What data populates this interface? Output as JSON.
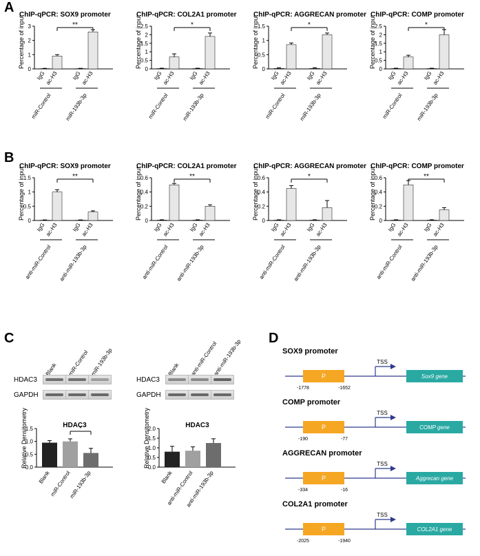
{
  "figure": {
    "panel_labels": {
      "A": "A",
      "B": "B",
      "C": "C",
      "D": "D"
    },
    "title_prefix": "ChIP-qPCR:",
    "y_axis_label": "Percentage of input",
    "y_axis_label_C": "Relative Densitometry",
    "x_ticks": [
      "IgG",
      "ac-H3",
      "IgG",
      "ac-H3"
    ],
    "sig": {
      "star1": "*",
      "star2": "**"
    },
    "colors": {
      "axis": "#000000",
      "bar_dark": "#888888",
      "bar_light": "#e7e7e7",
      "bar_black": "#222222",
      "bar_mid": "#a0a0a0",
      "bar_dark2": "#6d6d6d",
      "sig_line": "#000000",
      "promoter_box": "#f5a623",
      "gene_box": "#2aa9a3",
      "arrow": "#2e3a8c",
      "text": "#000000"
    },
    "panelA": {
      "groups": [
        "miR-Control",
        "miR-193b-3p"
      ],
      "charts": [
        {
          "title": "SOX9 promoter",
          "ymax": 3,
          "yticks": [
            0,
            1,
            2,
            3
          ],
          "values": [
            0.02,
            0.9,
            0.02,
            2.6
          ],
          "err": [
            0.02,
            0.1,
            0.02,
            0.15
          ],
          "sig": "**"
        },
        {
          "title": "COL2A1 promoter",
          "ymax": 2.5,
          "yticks": [
            0,
            0.5,
            1,
            1.5,
            2,
            2.5
          ],
          "values": [
            0.02,
            0.7,
            0.02,
            1.9
          ],
          "err": [
            0.02,
            0.18,
            0.02,
            0.2
          ],
          "sig": "*"
        },
        {
          "title": "AGGRECAN promoter",
          "ymax": 1.5,
          "yticks": [
            0,
            0.5,
            1,
            1.5
          ],
          "values": [
            0.02,
            0.85,
            0.02,
            1.2
          ],
          "err": [
            0.02,
            0.06,
            0.02,
            0.06
          ],
          "sig": "*"
        },
        {
          "title": "COMP promoter",
          "ymax": 2.5,
          "yticks": [
            0,
            0.5,
            1,
            1.5,
            2,
            2.5
          ],
          "values": [
            0.02,
            0.7,
            0.02,
            2.0
          ],
          "err": [
            0.02,
            0.1,
            0.02,
            0.3
          ],
          "sig": "*"
        }
      ]
    },
    "panelB": {
      "groups": [
        "anti-miR-Control",
        "anti-miR-193b-3p"
      ],
      "charts": [
        {
          "title": "SOX9 promoter",
          "ymax": 1.5,
          "yticks": [
            0,
            0.5,
            1,
            1.5
          ],
          "values": [
            0.01,
            1.0,
            0.01,
            0.3
          ],
          "err": [
            0.01,
            0.08,
            0.01,
            0.04
          ],
          "sig": "**"
        },
        {
          "title": "COL2A1 promoter",
          "ymax": 0.6,
          "yticks": [
            0,
            0.2,
            0.4,
            0.6
          ],
          "values": [
            0.005,
            0.5,
            0.005,
            0.2
          ],
          "err": [
            0.005,
            0.02,
            0.005,
            0.02
          ],
          "sig": "**"
        },
        {
          "title": "AGGRECAN promoter",
          "ymax": 0.6,
          "yticks": [
            0,
            0.2,
            0.4,
            0.6
          ],
          "values": [
            0.005,
            0.45,
            0.005,
            0.18
          ],
          "err": [
            0.005,
            0.04,
            0.005,
            0.1
          ],
          "sig": "*"
        },
        {
          "title": "COMP promoter",
          "ymax": 0.6,
          "yticks": [
            0,
            0.2,
            0.4,
            0.6
          ],
          "values": [
            0.005,
            0.5,
            0.005,
            0.15
          ],
          "err": [
            0.005,
            0.06,
            0.005,
            0.03
          ],
          "sig": "**"
        }
      ]
    },
    "panelC": {
      "blot_groups_left": [
        "Blank",
        "miR-Control",
        "miR-193b-3p"
      ],
      "blot_groups_right": [
        "Blank",
        "anti-miR-Control",
        "anti-miR-193b-3p"
      ],
      "blot_rows": [
        "HDAC3",
        "GAPDH"
      ],
      "blot_band_opacity_left": {
        "HDAC3": [
          0.8,
          0.8,
          0.45
        ],
        "GAPDH": [
          0.85,
          0.85,
          0.85
        ]
      },
      "blot_band_opacity_right": {
        "HDAC3": [
          0.6,
          0.6,
          0.9
        ],
        "GAPDH": [
          0.85,
          0.85,
          0.85
        ]
      },
      "bar_titles": [
        "HDAC3",
        "HDAC3"
      ],
      "bar_left": {
        "ymax": 1.5,
        "yticks": [
          0,
          0.5,
          1,
          1.5
        ],
        "values": [
          0.95,
          1.0,
          0.55
        ],
        "err": [
          0.08,
          0.1,
          0.18
        ],
        "sig": "*",
        "sig_between": [
          1,
          2
        ]
      },
      "bar_right": {
        "ymax": 2.0,
        "yticks": [
          0,
          0.5,
          1,
          1.5,
          2
        ],
        "values": [
          0.8,
          0.85,
          1.25
        ],
        "err": [
          0.28,
          0.2,
          0.22
        ],
        "sig": "",
        "sig_between": [
          1,
          2
        ]
      }
    },
    "panelD": {
      "items": [
        {
          "title": "SOX9 promoter",
          "p_start": "-1778",
          "p_end": "-1652",
          "gene": "Sox9 gene"
        },
        {
          "title": "COMP promoter",
          "p_start": "-190",
          "p_end": "-77",
          "gene": "COMP gene"
        },
        {
          "title": "AGGRECAN promoter",
          "p_start": "-334",
          "p_end": "-16",
          "gene": "Aggrecan gene"
        },
        {
          "title": "COL2A1 promoter",
          "p_start": "-2025",
          "p_end": "-1940",
          "gene": "COL2A1 gene"
        }
      ],
      "tss_label": "TSS",
      "p_label": "P"
    }
  }
}
